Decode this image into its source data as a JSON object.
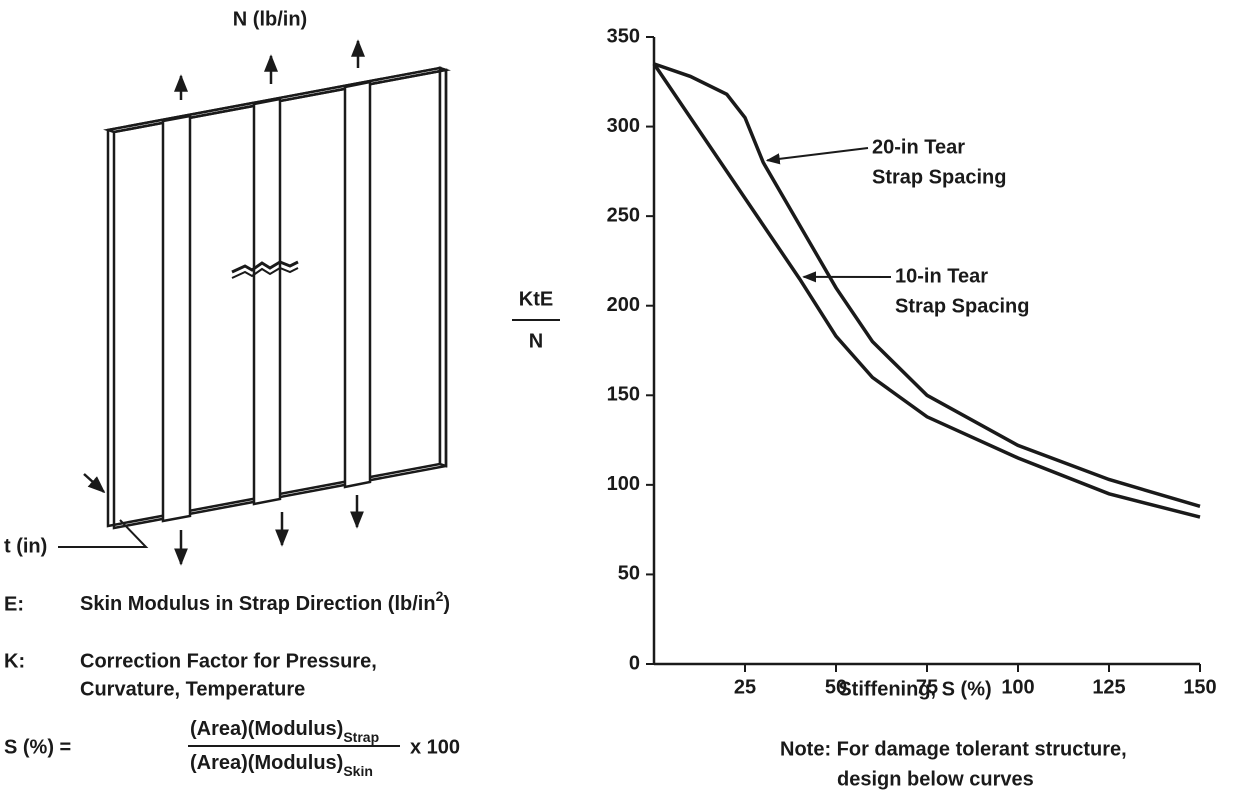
{
  "diagram": {
    "load_label": "N (lb/in)",
    "thickness_label": "t (in)"
  },
  "legend": {
    "e_symbol": "E:",
    "e_text": "Skin Modulus in Strap Direction (lb/in",
    "e_sup": "2",
    "e_close": ")",
    "k_symbol": "K:",
    "k_line1": "Correction Factor for Pressure,",
    "k_line2": "Curvature, Temperature"
  },
  "formula": {
    "lhs": "S (%) =",
    "numerator": "(Area)(Modulus)",
    "numerator_sub": "Strap",
    "denominator": "(Area)(Modulus)",
    "denominator_sub": "Skin",
    "factor": "x 100"
  },
  "chart_data": {
    "type": "line",
    "ylabel_top": "KtE",
    "ylabel_bottom": "N",
    "xlabel": "Stiffening, S (%)",
    "note": [
      "Note: For damage tolerant structure,",
      "design below curves"
    ],
    "x": [
      0,
      10,
      20,
      25,
      30,
      40,
      50,
      60,
      75,
      100,
      125,
      150
    ],
    "series": [
      {
        "label": [
          "20-in Tear",
          "Strap Spacing"
        ],
        "color": "#1a1a1a",
        "values": [
          335,
          328,
          318,
          305,
          280,
          245,
          210,
          180,
          150,
          122,
          103,
          88
        ]
      },
      {
        "label": [
          "10-in Tear",
          "Strap Spacing"
        ],
        "color": "#1a1a1a",
        "values": [
          335,
          305,
          275,
          260,
          245,
          215,
          183,
          160,
          138,
          115,
          95,
          82
        ]
      }
    ],
    "xlim": [
      0,
      150
    ],
    "xticks": [
      25,
      50,
      75,
      100,
      125,
      150
    ],
    "ylim": [
      0,
      350
    ],
    "yticks": [
      0,
      50,
      100,
      150,
      200,
      250,
      300,
      350
    ],
    "grid": false
  }
}
